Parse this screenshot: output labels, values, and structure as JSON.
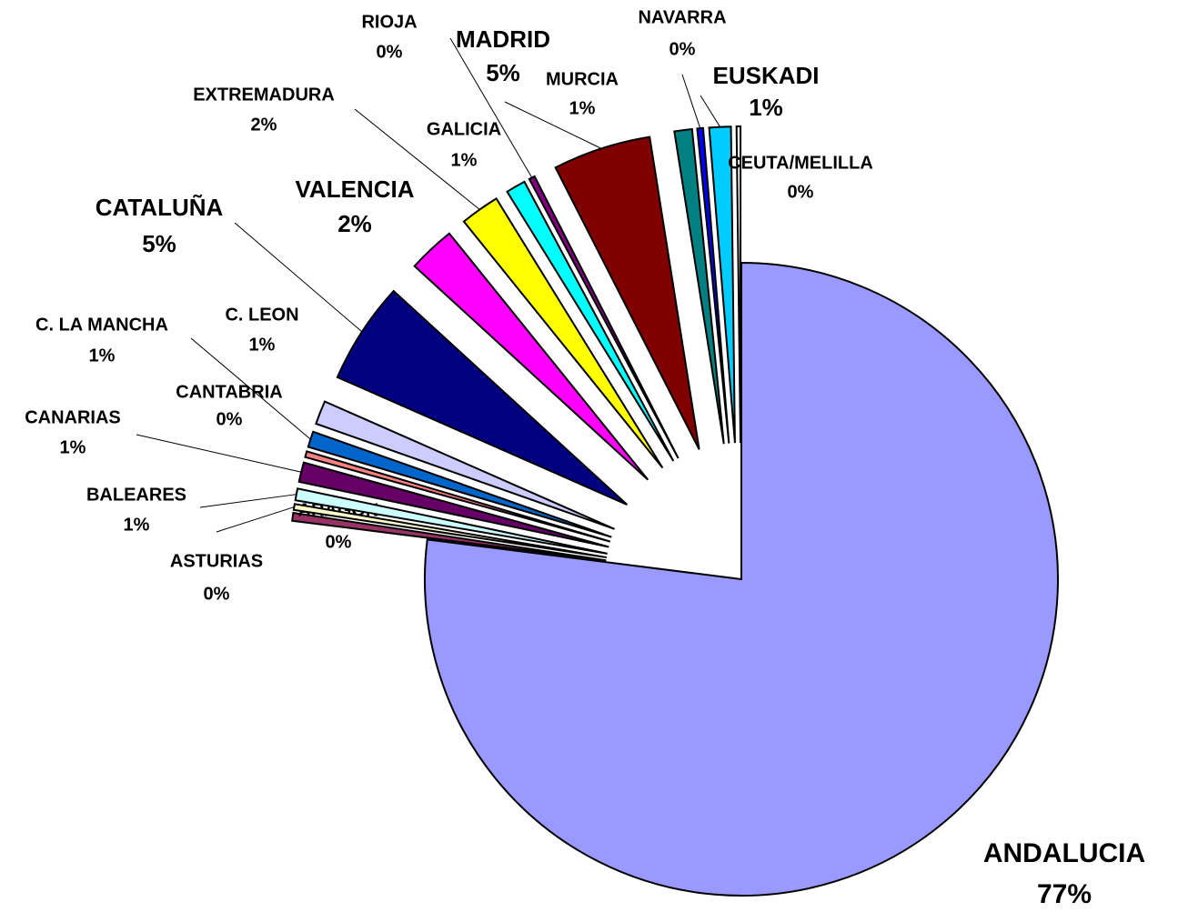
{
  "chart_data": {
    "type": "pie",
    "categories": [
      "ANDALUCIA",
      "ARAGON",
      "ASTURIAS",
      "BALEARES",
      "CANARIAS",
      "CANTABRIA",
      "C. LA MANCHA",
      "C. LEON",
      "CATALUÑA",
      "VALENCIA",
      "EXTREMADURA",
      "GALICIA",
      "RIOJA",
      "MADRID",
      "MURCIA",
      "NAVARRA",
      "EUSKADI",
      "CEUTA/MELILLA"
    ],
    "values": [
      77,
      0.4,
      0.3,
      0.6,
      1.0,
      0.3,
      0.8,
      1.2,
      5.2,
      2.4,
      2.0,
      1.0,
      0.3,
      5.0,
      0.9,
      0.3,
      1.1,
      0.2
    ],
    "value_labels": [
      "77%",
      "0%",
      "0%",
      "1%",
      "1%",
      "0%",
      "1%",
      "1%",
      "5%",
      "2%",
      "2%",
      "1%",
      "0%",
      "5%",
      "1%",
      "0%",
      "1%",
      "0%"
    ],
    "colors": [
      "#9999ff",
      "#993366",
      "#ffffcc",
      "#ccffff",
      "#660066",
      "#ff8080",
      "#0066cc",
      "#ccccff",
      "#000080",
      "#ff00ff",
      "#ffff00",
      "#00ffff",
      "#800080",
      "#800000",
      "#008080",
      "#0000ff",
      "#00ccff",
      "#ffffff"
    ]
  }
}
